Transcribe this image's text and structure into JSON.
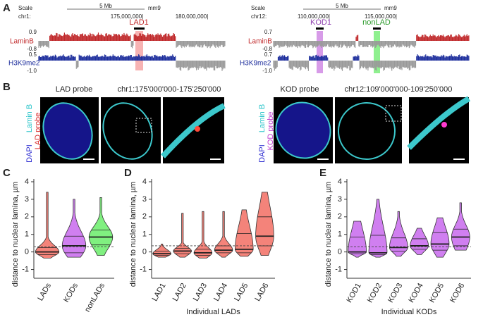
{
  "panel_labels": [
    "A",
    "B",
    "C",
    "D",
    "E"
  ],
  "browser": [
    {
      "scale": "Scale",
      "chrom": "chr1:",
      "scalebar": "5 Mb",
      "assembly": "mm9",
      "positions": [
        "175,000,000|",
        "180,000,000|"
      ],
      "highlights": [
        "LAD1"
      ],
      "tracks": [
        {
          "name": "LaminB",
          "ticks": [
            "0.9",
            "-0.8"
          ]
        },
        {
          "name": "H3K9me2",
          "ticks": [
            "0.5",
            "-1.0"
          ]
        }
      ]
    },
    {
      "scale": "Scale",
      "chrom": "chr12:",
      "scalebar": "5 Mb",
      "assembly": "mm9",
      "positions": [
        "110,000,000|",
        "115,000,000|"
      ],
      "highlights": [
        "KOD1",
        "nonLAD"
      ],
      "tracks": [
        {
          "name": "LaminB",
          "ticks": [
            "0.7",
            "-0.8"
          ]
        },
        {
          "name": "H3K9me2",
          "ticks": [
            "0.7",
            "-1.0"
          ]
        }
      ]
    }
  ],
  "microscopy": [
    {
      "probe_title": "LAD probe",
      "region": "chr1:175'000'000-175'250'000",
      "channels": [
        "DAPI",
        "Lamin B",
        "LAD probe"
      ]
    },
    {
      "probe_title": "KOD probe",
      "region": "chr12:109'000'000-109'250'000",
      "channels": [
        "DAPI",
        "Lamin B",
        "KOD probe"
      ]
    }
  ],
  "chart_data": [
    {
      "type": "violin",
      "ylabel": "distance to nuclear lamina, µm",
      "categories": [
        "LADs",
        "KODs",
        "nonLADs"
      ],
      "colors": [
        "#f4837a",
        "#d07ff0",
        "#80f080"
      ],
      "min": [
        -0.35,
        -0.3,
        -0.2
      ],
      "q1": [
        -0.15,
        -0.05,
        0.4
      ],
      "median": [
        0,
        0.35,
        0.85
      ],
      "q3": [
        0.25,
        0.9,
        1.25
      ],
      "max": [
        3.4,
        3.0,
        3.1
      ],
      "reference_line": 0.3,
      "ylim": [
        -1.5,
        4
      ],
      "yticks": [
        -1,
        0,
        1,
        2,
        3,
        4
      ]
    },
    {
      "type": "violin",
      "ylabel": "distance to nuclear lamina, µm",
      "xlabel": "Individual LADs",
      "categories": [
        "LAD1",
        "LAD2",
        "LAD3",
        "LAD4",
        "LAD5",
        "LAD6"
      ],
      "colors": [
        "#f4837a",
        "#f4837a",
        "#f4837a",
        "#f4837a",
        "#f4837a",
        "#f4837a"
      ],
      "min": [
        -0.3,
        -0.3,
        -0.35,
        -0.3,
        -0.25,
        -0.2
      ],
      "q1": [
        -0.2,
        -0.1,
        -0.2,
        -0.05,
        -0.05,
        0.35
      ],
      "median": [
        -0.1,
        0.05,
        -0.05,
        0.1,
        0.15,
        0.9
      ],
      "q3": [
        0.05,
        0.2,
        0.15,
        0.35,
        1.05,
        2.0
      ],
      "max": [
        0.45,
        2.2,
        2.3,
        2.3,
        2.4,
        3.4
      ],
      "reference_line": 0.35,
      "ylim": [
        -1.5,
        4
      ],
      "yticks": [
        -1,
        0,
        1,
        2,
        3,
        4
      ]
    },
    {
      "type": "violin",
      "ylabel": "distance to nuclear lamina, µm",
      "xlabel": "Individual KODs",
      "categories": [
        "KOD1",
        "KOD2",
        "KOD3",
        "KOD4",
        "KOD5",
        "KOD6"
      ],
      "colors": [
        "#d07ff0",
        "#d07ff0",
        "#d07ff0",
        "#d07ff0",
        "#d07ff0",
        "#d07ff0"
      ],
      "min": [
        -0.3,
        -0.3,
        -0.25,
        -0.15,
        -0.3,
        0.1
      ],
      "q1": [
        -0.1,
        -0.15,
        0.05,
        0.15,
        0.1,
        0.35
      ],
      "median": [
        0,
        -0.05,
        0.25,
        0.35,
        0.45,
        0.85
      ],
      "q3": [
        0.85,
        0.95,
        0.8,
        0.75,
        1.1,
        1.3
      ],
      "max": [
        1.75,
        3.0,
        2.3,
        1.35,
        1.95,
        2.8
      ],
      "reference_line": 0.3,
      "ylim": [
        -1.5,
        4
      ],
      "yticks": [
        -1,
        0,
        1,
        2,
        3,
        4
      ]
    }
  ]
}
